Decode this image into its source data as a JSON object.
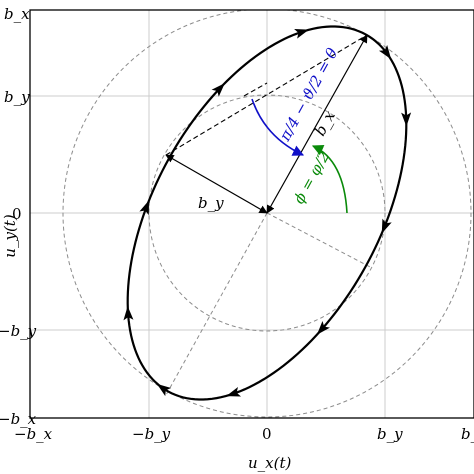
{
  "axes": {
    "x_label": "u_x(t)",
    "y_label": "u_y(t)",
    "x_ticks": [
      "−b_x",
      "−b_y",
      "0",
      "b_y",
      "b_x"
    ],
    "y_ticks": [
      "b_x",
      "b_y",
      "0",
      "−b_y",
      "−b_x"
    ]
  },
  "diagram": {
    "semi_major_label": "b_x",
    "semi_minor_label": "b_y",
    "angle_blue_label": "π/4 − ϑ/2 = θ",
    "angle_green_label": "ϕ = φ/2",
    "colors": {
      "angle_blue": "#1010c8",
      "angle_green": "#0a8a0a",
      "curve": "#000000",
      "dashed_circle": "#8c8c8c",
      "grid": "#cccccc"
    },
    "ellipse": {
      "semi_major": 1.0,
      "semi_minor": 0.55,
      "orientation_deg": 61
    }
  }
}
